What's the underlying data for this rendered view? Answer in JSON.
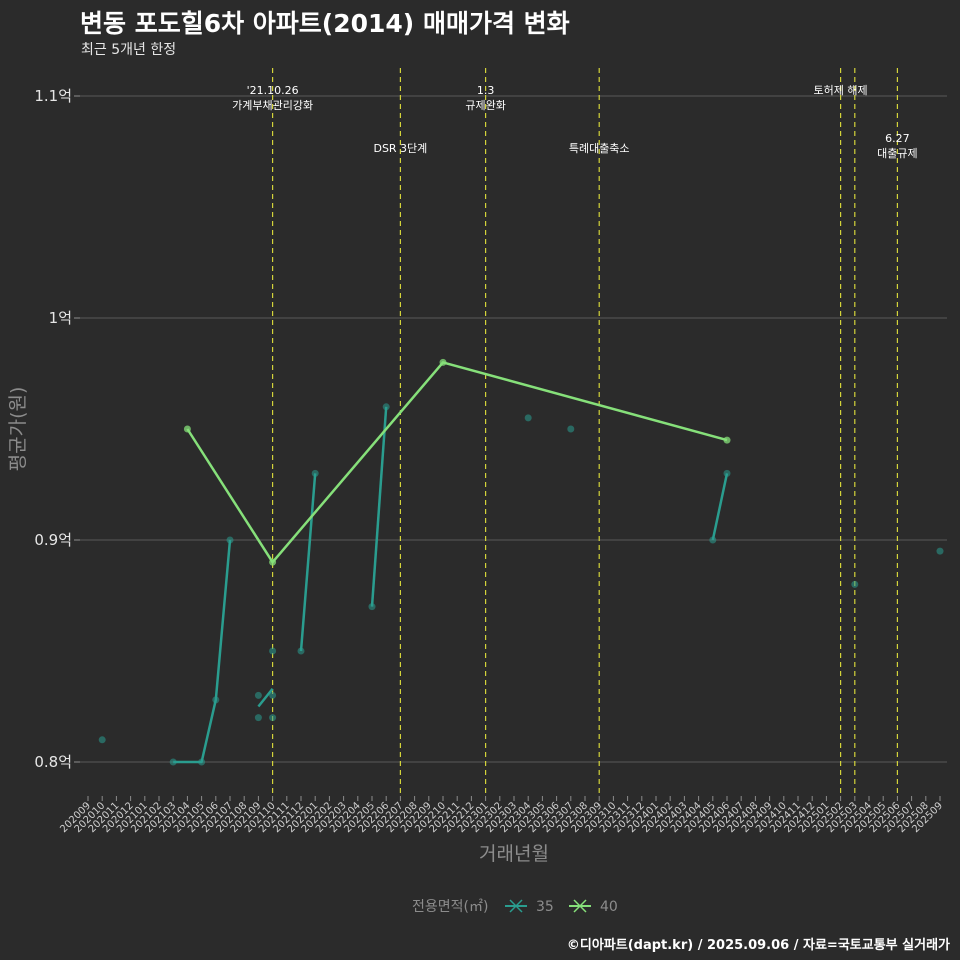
{
  "chart_data": {
    "type": "line",
    "title": "변동 포도힐6차 아파트(2014) 매매가격 변화",
    "subtitle": "최근 5개년 한정",
    "xlabel": "거래년월",
    "ylabel": "평균가(원)",
    "caption": "©디아파트(dapt.kr) / 2025.09.06 / 자료=국토교통부 실거래가",
    "legend_title": "전용면적(㎡)",
    "legend_position": "bottom",
    "grid": true,
    "ylim": [
      0.79,
      1.11
    ],
    "yticks": [
      {
        "value": 0.8,
        "label": "0.8억"
      },
      {
        "value": 0.9,
        "label": "0.9억"
      },
      {
        "value": 1.0,
        "label": "1억"
      },
      {
        "value": 1.1,
        "label": "1.1억"
      }
    ],
    "x_categories": [
      "202009",
      "202010",
      "202011",
      "202012",
      "202101",
      "202102",
      "202103",
      "202104",
      "202105",
      "202106",
      "202107",
      "202108",
      "202109",
      "202110",
      "202111",
      "202112",
      "202201",
      "202202",
      "202203",
      "202204",
      "202205",
      "202206",
      "202207",
      "202208",
      "202209",
      "202210",
      "202211",
      "202212",
      "202301",
      "202302",
      "202303",
      "202304",
      "202305",
      "202306",
      "202307",
      "202308",
      "202309",
      "202310",
      "202311",
      "202312",
      "202401",
      "202402",
      "202403",
      "202404",
      "202405",
      "202406",
      "202407",
      "202408",
      "202409",
      "202410",
      "202411",
      "202412",
      "202501",
      "202502",
      "202503",
      "202504",
      "202505",
      "202506",
      "202507",
      "202508",
      "202509"
    ],
    "series": [
      {
        "name": "35",
        "color": "#2a9d8f",
        "line": [
          {
            "x": "202103",
            "y": 0.8
          },
          {
            "x": "202105",
            "y": 0.8
          },
          {
            "x": "202106",
            "y": 0.828
          },
          {
            "x": "202107",
            "y": 0.9
          },
          {
            "x": "202109",
            "y": 0.825
          },
          {
            "x": "202110",
            "y": 0.833
          },
          {
            "x": "202112",
            "y": 0.85
          },
          {
            "x": "202201",
            "y": 0.93
          },
          {
            "x": "202205",
            "y": 0.87
          },
          {
            "x": "202206",
            "y": 0.96
          },
          {
            "x": "202405",
            "y": 0.9
          },
          {
            "x": "202406",
            "y": 0.93
          }
        ],
        "points": [
          {
            "x": "202010",
            "y": 0.81
          },
          {
            "x": "202103",
            "y": 0.8
          },
          {
            "x": "202105",
            "y": 0.8
          },
          {
            "x": "202106",
            "y": 0.828
          },
          {
            "x": "202107",
            "y": 0.9
          },
          {
            "x": "202109",
            "y": 0.83
          },
          {
            "x": "202109",
            "y": 0.82
          },
          {
            "x": "202110",
            "y": 0.85
          },
          {
            "x": "202110",
            "y": 0.83
          },
          {
            "x": "202110",
            "y": 0.82
          },
          {
            "x": "202112",
            "y": 0.85
          },
          {
            "x": "202201",
            "y": 0.93
          },
          {
            "x": "202205",
            "y": 0.87
          },
          {
            "x": "202206",
            "y": 0.96
          },
          {
            "x": "202304",
            "y": 0.955
          },
          {
            "x": "202307",
            "y": 0.95
          },
          {
            "x": "202405",
            "y": 0.9
          },
          {
            "x": "202406",
            "y": 0.93
          },
          {
            "x": "202503",
            "y": 0.88
          },
          {
            "x": "202509",
            "y": 0.895
          }
        ]
      },
      {
        "name": "40",
        "color": "#86e07a",
        "line": [
          {
            "x": "202104",
            "y": 0.95
          },
          {
            "x": "202110",
            "y": 0.89
          },
          {
            "x": "202210",
            "y": 0.98
          },
          {
            "x": "202406",
            "y": 0.945
          }
        ],
        "points": [
          {
            "x": "202104",
            "y": 0.95
          },
          {
            "x": "202110",
            "y": 0.89
          },
          {
            "x": "202210",
            "y": 0.98
          },
          {
            "x": "202406",
            "y": 0.945
          }
        ]
      }
    ],
    "vlines": [
      {
        "x": "202110",
        "labels": [
          "'21.10.26",
          "가계부채관리강화"
        ],
        "pos": "top"
      },
      {
        "x": "202207",
        "labels": [
          "DSR 3단계"
        ],
        "pos": "mid"
      },
      {
        "x": "202301",
        "labels": [
          "1.3",
          "규제완화"
        ],
        "pos": "top"
      },
      {
        "x": "202309",
        "labels": [
          "특례대출축소"
        ],
        "pos": "mid"
      },
      {
        "x": "202502",
        "labels": [
          "토허제 해제"
        ],
        "pos": "top"
      },
      {
        "x": "202503",
        "labels": [],
        "pos": "none"
      },
      {
        "x": "202506",
        "labels": [
          "6.27",
          "대출규제"
        ],
        "pos": "low"
      }
    ]
  }
}
